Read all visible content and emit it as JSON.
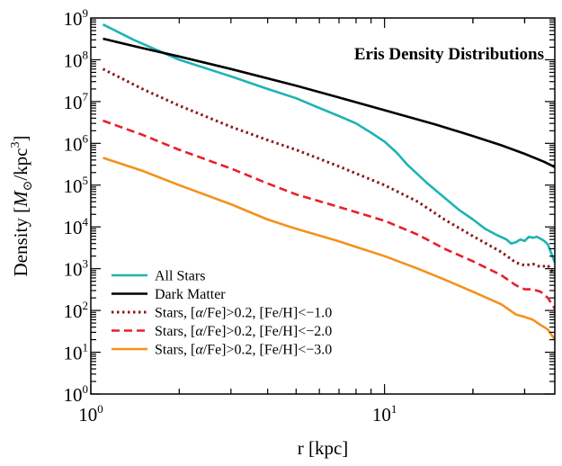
{
  "chart_data": {
    "type": "line",
    "title": "Eris Density Distributions",
    "xlabel": "r [kpc]",
    "ylabel": "Density [M⊙/kpc³]",
    "ylabel_parts": {
      "prefix": "Density [",
      "symbol": "M",
      "sub": "⊙",
      "unit": "/kpc",
      "exp": "3",
      "suffix": "]"
    },
    "xscale": "log",
    "yscale": "log",
    "xlim": [
      1,
      38
    ],
    "ylim": [
      1,
      1000000000
    ],
    "x_ticks": [
      {
        "value": 1,
        "base": "10",
        "exp": "0"
      },
      {
        "value": 10,
        "base": "10",
        "exp": "1"
      }
    ],
    "y_ticks": [
      {
        "value": 1,
        "base": "10",
        "exp": "0"
      },
      {
        "value": 10,
        "base": "10",
        "exp": "1"
      },
      {
        "value": 100,
        "base": "10",
        "exp": "2"
      },
      {
        "value": 1000,
        "base": "10",
        "exp": "3"
      },
      {
        "value": 10000,
        "base": "10",
        "exp": "4"
      },
      {
        "value": 100000,
        "base": "10",
        "exp": "5"
      },
      {
        "value": 1000000,
        "base": "10",
        "exp": "6"
      },
      {
        "value": 10000000,
        "base": "10",
        "exp": "7"
      },
      {
        "value": 100000000,
        "base": "10",
        "exp": "8"
      },
      {
        "value": 1000000000,
        "base": "10",
        "exp": "9"
      }
    ],
    "grid": false,
    "legend_placement": "bottom-left",
    "series": [
      {
        "name": "All Stars",
        "color": "#1fb3b3",
        "dash": "solid",
        "x": [
          1.1,
          1.4,
          2,
          3,
          4,
          5,
          6,
          7,
          8,
          9,
          10,
          11,
          12,
          14,
          16,
          18,
          20,
          22,
          24,
          26,
          27,
          28,
          29,
          30,
          31,
          32,
          33,
          34,
          35,
          36,
          37,
          38
        ],
        "y": [
          700000000,
          300000000,
          100000000,
          40000000,
          20000000,
          12000000,
          7000000,
          4500000,
          3000000,
          1800000,
          1100000,
          600000,
          300000,
          110000,
          50000,
          25000,
          15000,
          9000,
          6500,
          5000,
          4000,
          4300,
          5000,
          4600,
          5800,
          5500,
          5800,
          5200,
          4600,
          3800,
          2300,
          1400
        ]
      },
      {
        "name": "Dark Matter",
        "color": "#000000",
        "dash": "solid",
        "x": [
          1.1,
          1.5,
          2,
          3,
          5,
          7,
          10,
          15,
          20,
          25,
          30,
          35,
          38
        ],
        "y": [
          320000000,
          190000000,
          120000000,
          60000000,
          24000000,
          12500000,
          6200000,
          2800000,
          1500000,
          900000,
          560000,
          360000,
          270000
        ]
      },
      {
        "name": "Stars, [α/Fe]>0.2, [Fe/H]<−1.0",
        "label_parts": {
          "a": "Stars, [",
          "alpha": "α",
          "b": "/Fe]>0.2, [Fe/H]<−1.0"
        },
        "color": "#8b1a1a",
        "dash": "dotted",
        "x": [
          1.1,
          1.5,
          2,
          3,
          4,
          5,
          7,
          10,
          13,
          16,
          20,
          25,
          28,
          30,
          32,
          34,
          36,
          38
        ],
        "y": [
          60000000,
          20000000,
          8000000,
          2500000,
          1200000,
          700000,
          280000,
          100000,
          40000,
          15000,
          6000,
          2500,
          1400,
          1200,
          1300,
          1100,
          1200,
          700
        ]
      },
      {
        "name": "Stars, [α/Fe]>0.2, [Fe/H]<−2.0",
        "label_parts": {
          "a": "Stars, [",
          "alpha": "α",
          "b": "/Fe]>0.2, [Fe/H]<−2.0"
        },
        "color": "#e8202a",
        "dash": "dashed",
        "x": [
          1.1,
          1.5,
          2,
          3,
          4,
          5,
          7,
          10,
          13,
          16,
          20,
          25,
          28,
          30,
          32,
          34,
          36,
          38
        ],
        "y": [
          3500000,
          1600000,
          700000,
          250000,
          110000,
          60000,
          30000,
          14000,
          6500,
          3000,
          1500,
          700,
          400,
          320,
          320,
          280,
          200,
          110
        ]
      },
      {
        "name": "Stars, [α/Fe]>0.2, [Fe/H]<−3.0",
        "label_parts": {
          "a": "Stars, [",
          "alpha": "α",
          "b": "/Fe]>0.2, [Fe/H]<−3.0"
        },
        "color": "#f5901e",
        "dash": "solid",
        "x": [
          1.1,
          1.5,
          2,
          3,
          4,
          5,
          7,
          10,
          13,
          16,
          20,
          25,
          28,
          30,
          32,
          34,
          36,
          38
        ],
        "y": [
          450000,
          220000,
          100000,
          35000,
          15000,
          9000,
          4500,
          2000,
          1000,
          550,
          280,
          140,
          80,
          70,
          60,
          45,
          35,
          20
        ]
      }
    ]
  }
}
